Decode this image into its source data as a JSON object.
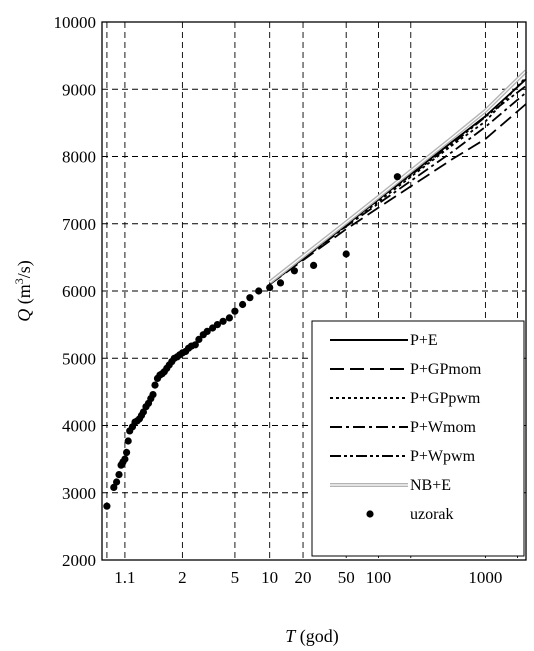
{
  "chart_data": {
    "type": "line",
    "title": "",
    "xlabel": {
      "var": "T",
      "unit": " (god)"
    },
    "ylabel": {
      "var": "Q",
      "unit_pre": " (m",
      "unit_sup": "3",
      "unit_post": "/s)"
    },
    "x_scale": "gumbel-reduced-variate",
    "xlim": [
      1.02,
      2400
    ],
    "ylim": [
      2000,
      10000
    ],
    "y_ticks": [
      2000,
      3000,
      4000,
      5000,
      6000,
      7000,
      8000,
      9000,
      10000
    ],
    "x_ticks": [
      {
        "value": 1.03,
        "label": ""
      },
      {
        "value": 1.1,
        "label": "1.1"
      },
      {
        "value": 2,
        "label": "2"
      },
      {
        "value": 5,
        "label": "5"
      },
      {
        "value": 10,
        "label": "10"
      },
      {
        "value": 20,
        "label": "20"
      },
      {
        "value": 50,
        "label": "50"
      },
      {
        "value": 100,
        "label": "100"
      },
      {
        "value": 200,
        "label": ""
      },
      {
        "value": 1000,
        "label": "1000"
      },
      {
        "value": 2000,
        "label": ""
      }
    ],
    "grid": true,
    "legend_position": "bottom-right",
    "series": [
      {
        "name": "P+E",
        "style": "solid",
        "color": "#000000",
        "x": [
          10,
          50,
          100,
          500,
          1000,
          2400
        ],
        "y": [
          6100,
          6980,
          7360,
          8230,
          8600,
          9150
        ]
      },
      {
        "name": "P+GPmom",
        "style": "dash",
        "color": "#000000",
        "x": [
          10,
          50,
          100,
          500,
          1000,
          2400
        ],
        "y": [
          6100,
          6920,
          7240,
          7970,
          8260,
          8780
        ]
      },
      {
        "name": "P+GPpwm",
        "style": "dot",
        "color": "#000000",
        "x": [
          10,
          50,
          100,
          500,
          1000,
          2400
        ],
        "y": [
          6100,
          6970,
          7330,
          8180,
          8520,
          9180
        ]
      },
      {
        "name": "P+Wmom",
        "style": "dashdot",
        "color": "#000000",
        "x": [
          10,
          50,
          100,
          500,
          1000,
          2400
        ],
        "y": [
          6100,
          6960,
          7300,
          8080,
          8440,
          8950
        ]
      },
      {
        "name": "P+Wpwm",
        "style": "dashdotdot",
        "color": "#000000",
        "x": [
          10,
          50,
          100,
          500,
          1000,
          2400
        ],
        "y": [
          6100,
          6990,
          7360,
          8200,
          8590,
          9050
        ]
      },
      {
        "name": "NB+E",
        "style": "double",
        "color": "#b4b4b4",
        "x": [
          10,
          50,
          100,
          500,
          1000,
          2400
        ],
        "y": [
          6130,
          7020,
          7400,
          8290,
          8680,
          9270
        ]
      }
    ],
    "sample": {
      "name": "uzorak",
      "x": [
        1.03,
        1.05,
        1.06,
        1.07,
        1.08,
        1.085,
        1.09,
        1.1,
        1.11,
        1.12,
        1.13,
        1.15,
        1.17,
        1.19,
        1.21,
        1.23,
        1.25,
        1.28,
        1.31,
        1.34,
        1.37,
        1.4,
        1.44,
        1.48,
        1.52,
        1.56,
        1.61,
        1.66,
        1.72,
        1.78,
        1.85,
        1.92,
        2.0,
        2.1,
        2.2,
        2.3,
        2.45,
        2.6,
        2.8,
        3.0,
        3.3,
        3.6,
        4.0,
        4.5,
        5.0,
        5.8,
        6.7,
        8.0,
        10,
        12.5,
        16.7,
        25,
        50,
        150
      ],
      "y": [
        2800,
        3080,
        3160,
        3270,
        3410,
        3430,
        3460,
        3500,
        3600,
        3770,
        3920,
        3980,
        4050,
        4070,
        4100,
        4150,
        4200,
        4280,
        4330,
        4400,
        4460,
        4600,
        4700,
        4750,
        4770,
        4800,
        4850,
        4900,
        4950,
        5000,
        5020,
        5050,
        5080,
        5100,
        5150,
        5180,
        5200,
        5280,
        5350,
        5400,
        5450,
        5500,
        5550,
        5600,
        5700,
        5800,
        5900,
        6000,
        6050,
        6120,
        6300,
        6380,
        6550,
        7700
      ]
    }
  }
}
